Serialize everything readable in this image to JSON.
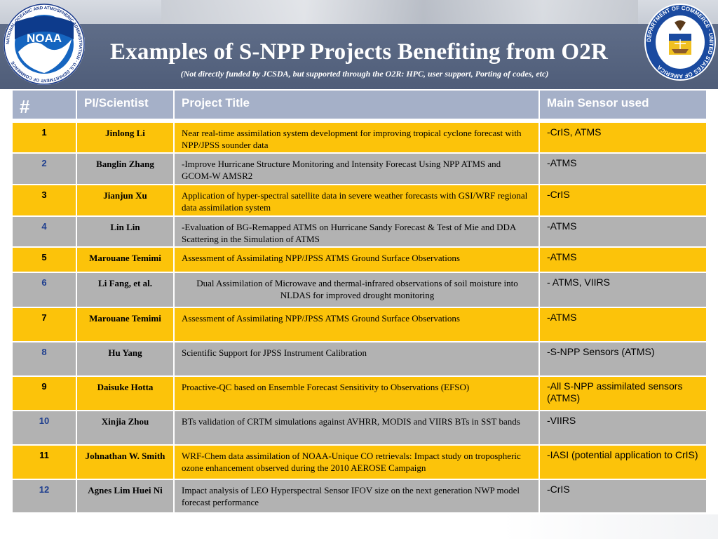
{
  "header": {
    "title": "Examples of S-NPP Projects Benefiting from O2R",
    "subtitle": "(Not directly funded by JCSDA, but supported through the O2R: HPC, user support, Porting of codes, etc)",
    "noaa_logo_text": "NOAA",
    "noaa_ring_text": "NATIONAL OCEANIC AND ATMOSPHERIC ADMINISTRATION · U.S. DEPARTMENT OF COMMERCE",
    "doc_ring_text": "DEPARTMENT OF COMMERCE · UNITED STATES OF AMERICA"
  },
  "colors": {
    "header_bg": "#4f5d79",
    "table_header_bg": "#a5b0c8",
    "row_yellow": "#fcc30a",
    "row_gray": "#b2b2b2",
    "number_blue": "#1f3f8f"
  },
  "table": {
    "headers": {
      "num": "#",
      "pi": "PI/Scientist",
      "title": "Project Title",
      "sensor": "Main Sensor used"
    },
    "rows": [
      {
        "num": "1",
        "pi": "Jinlong Li",
        "title": "Near real-time assimilation system development for improving tropical cyclone forecast with NPP/JPSS sounder data",
        "sensor": "-CrIS, ATMS"
      },
      {
        "num": "2",
        "pi": "Banglin Zhang",
        "title": "-Improve Hurricane Structure Monitoring and Intensity Forecast Using NPP ATMS and GCOM-W AMSR2",
        "sensor": "-ATMS"
      },
      {
        "num": "3",
        "pi": "Jianjun Xu",
        "title": "Application of hyper-spectral satellite data in severe weather forecasts with GSI/WRF regional data assimilation system",
        "sensor": "-CrIS"
      },
      {
        "num": "4",
        "pi": "Lin Lin",
        "title": "-Evaluation of BG-Remapped ATMS on Hurricane Sandy Forecast & Test of Mie and DDA Scattering in the Simulation of ATMS",
        "sensor": "-ATMS"
      },
      {
        "num": "5",
        "pi": "Marouane Temimi",
        "title": "Assessment of Assimilating NPP/JPSS ATMS Ground Surface Observations",
        "sensor": "-ATMS"
      },
      {
        "num": "6",
        "pi": "Li Fang, et al.",
        "title": "Dual Assimilation of Microwave and thermal-infrared observations of soil moisture into NLDAS for improved drought monitoring",
        "sensor": "- ATMS, VIIRS"
      },
      {
        "num": "7",
        "pi": "Marouane Temimi",
        "title": "Assessment of Assimilating NPP/JPSS ATMS Ground Surface Observations",
        "sensor": "-ATMS"
      },
      {
        "num": "8",
        "pi": "Hu Yang",
        "title": "Scientific Support for JPSS Instrument Calibration",
        "sensor": "-S-NPP Sensors (ATMS)"
      },
      {
        "num": "9",
        "pi": "Daisuke Hotta",
        "title": "Proactive-QC based on Ensemble Forecast Sensitivity to Observations (EFSO)",
        "sensor": "-All S-NPP assimilated sensors (ATMS)"
      },
      {
        "num": "10",
        "pi": "Xinjia Zhou",
        "title": "BTs validation of  CRTM simulations against AVHRR, MODIS and VIIRS BTs in SST bands",
        "sensor": "-VIIRS"
      },
      {
        "num": "11",
        "pi": "Johnathan W. Smith",
        "title": "WRF-Chem data assimilation of NOAA-Unique CO retrievals: Impact study on tropospheric ozone enhancement observed during the 2010 AEROSE Campaign",
        "sensor": "-IASI (potential application to CrIS)"
      },
      {
        "num": "12",
        "pi": "Agnes Lim Huei Ni",
        "title": "Impact analysis of LEO Hyperspectral Sensor IFOV size on the next generation NWP model forecast performance",
        "sensor": "-CrIS"
      }
    ]
  }
}
